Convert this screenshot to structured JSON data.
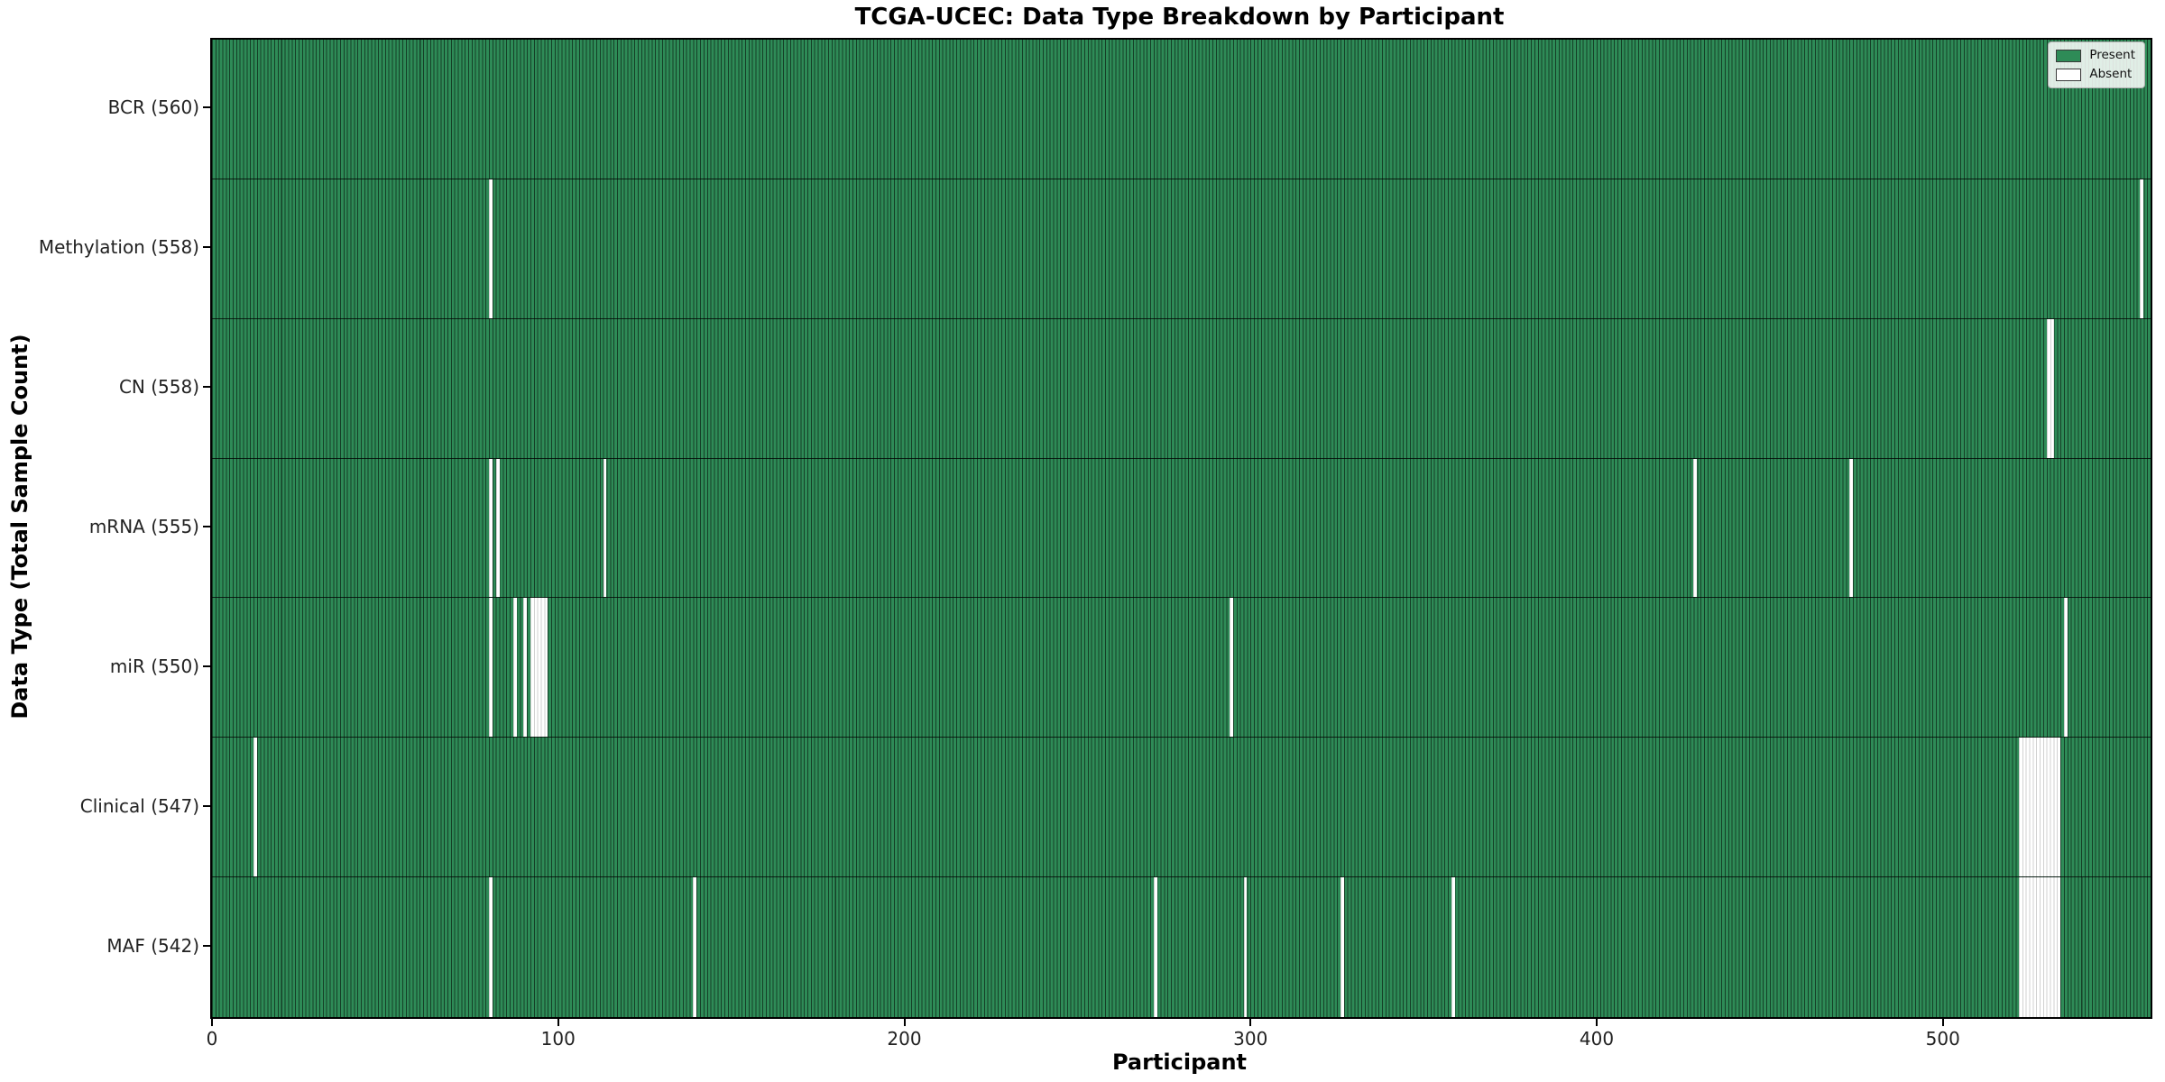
{
  "figure": {
    "title": "TCGA-UCEC: Data Type Breakdown by Participant",
    "xlabel": "Participant",
    "ylabel": "Data Type (Total Sample Count)"
  },
  "legend": {
    "present_label": "Present",
    "absent_label": "Absent"
  },
  "chart_data": {
    "type": "heatmap",
    "title": "TCGA-UCEC: Data Type Breakdown by Participant",
    "xlabel": "Participant",
    "ylabel": "Data Type (Total Sample Count)",
    "n_participants": 560,
    "xlim": [
      0,
      560
    ],
    "x_ticks": [
      0,
      100,
      200,
      300,
      400,
      500
    ],
    "grid": false,
    "legend_position": "upper right",
    "colors": {
      "present": "#2e8b57",
      "absent": "#ffffff",
      "edge": "#000000"
    },
    "legend": [
      {
        "label": "Present",
        "color": "#2e8b57"
      },
      {
        "label": "Absent",
        "color": "#ffffff"
      }
    ],
    "rows": [
      {
        "data_type": "BCR",
        "label": "BCR (560)",
        "present_count": 560,
        "absent_participants": []
      },
      {
        "data_type": "Methylation",
        "label": "Methylation (558)",
        "present_count": 558,
        "absent_participants": [
          80,
          557
        ]
      },
      {
        "data_type": "CN",
        "label": "CN (558)",
        "present_count": 558,
        "absent_participants": [
          530,
          531
        ]
      },
      {
        "data_type": "mRNA",
        "label": "mRNA (555)",
        "present_count": 555,
        "absent_participants": [
          80,
          82,
          113,
          428,
          473
        ]
      },
      {
        "data_type": "miR",
        "label": "miR (550)",
        "present_count": 550,
        "absent_participants": [
          80,
          87,
          90,
          92,
          93,
          94,
          95,
          96,
          294,
          535
        ]
      },
      {
        "data_type": "Clinical",
        "label": "Clinical (547)",
        "present_count": 547,
        "absent_participants": [
          12,
          522,
          523,
          524,
          525,
          526,
          527,
          528,
          529,
          530,
          531,
          532,
          533
        ]
      },
      {
        "data_type": "MAF",
        "label": "MAF (542)",
        "present_count": 542,
        "absent_participants": [
          80,
          139,
          272,
          298,
          326,
          358,
          522,
          523,
          524,
          525,
          526,
          527,
          528,
          529,
          530,
          531,
          532,
          533
        ]
      }
    ]
  }
}
